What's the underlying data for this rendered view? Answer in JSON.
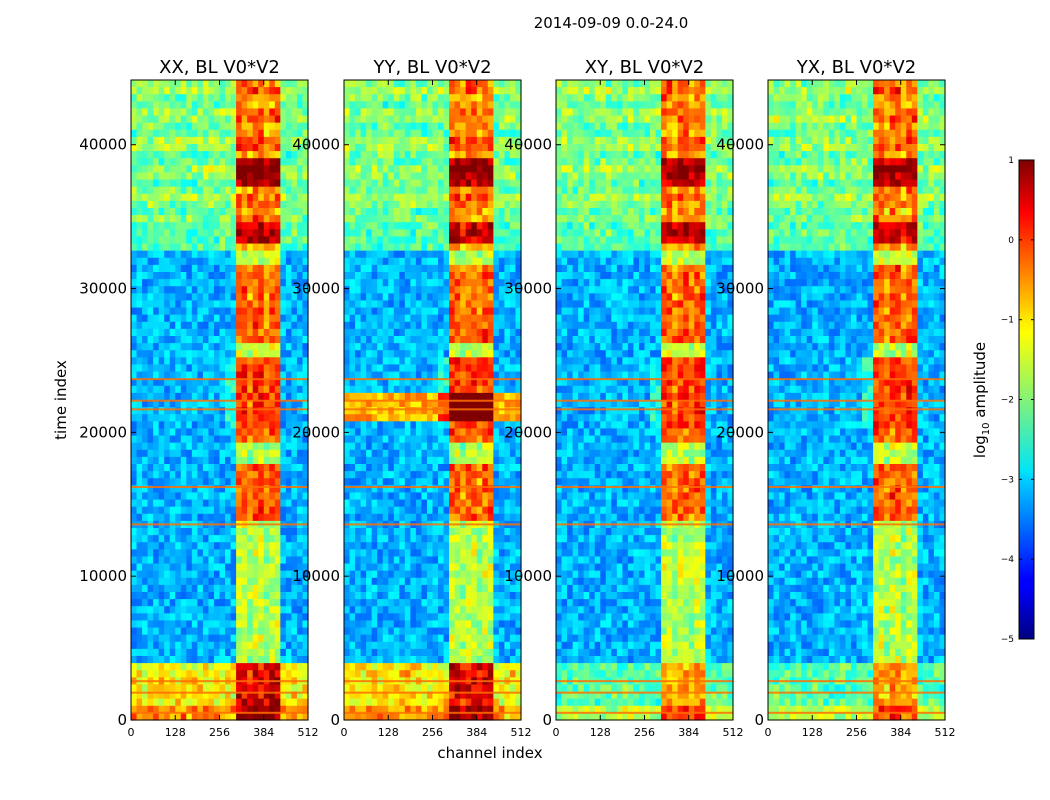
{
  "chart_data": {
    "type": "heatmap",
    "suptitle": "2014-09-09 0.0-24.0",
    "xlabel": "channel index",
    "ylabel": "time index",
    "xlim": [
      0,
      512
    ],
    "ylim": [
      0,
      44500
    ],
    "x_ticks": [
      "0",
      "128",
      "256",
      "384",
      "512"
    ],
    "x_tick_values": [
      0,
      128,
      256,
      384,
      512
    ],
    "y_ticks": [
      "0",
      "10000",
      "20000",
      "30000",
      "40000"
    ],
    "y_tick_values": [
      0,
      10000,
      20000,
      30000,
      40000
    ],
    "colorbar": {
      "label_prefix": "log",
      "label_sub": "10",
      "label_suffix": " amplitude",
      "ticks": [
        "1",
        "0",
        "−1",
        "−2",
        "−3",
        "−4",
        "−5"
      ],
      "tick_values": [
        1,
        0,
        -1,
        -2,
        -3,
        -4,
        -5
      ],
      "range": [
        -5,
        1
      ],
      "colormap": "jet"
    },
    "panels": [
      {
        "title": "XX, BL V0*V2",
        "extra_band": null
      },
      {
        "title": "YY, BL V0*V2",
        "extra_band": [
          21000,
          22500
        ]
      },
      {
        "title": "XY, BL V0*V2",
        "extra_band": null
      },
      {
        "title": "YX, BL V0*V2",
        "extra_band": null
      }
    ],
    "features": {
      "background_log_amp": -3.2,
      "quiet_region_time": [
        4000,
        32500
      ],
      "strong_channel_band": [
        310,
        430
      ],
      "hot_time_band": [
        20500,
        25000
      ],
      "hot_blocks_time": [
        [
          14000,
          18000
        ],
        [
          19500,
          20500
        ],
        [
          26000,
          31500
        ],
        [
          33000,
          34500
        ],
        [
          37000,
          39000
        ]
      ],
      "streak_times": [
        23700,
        22200,
        21600,
        16200,
        13600,
        2700,
        1900,
        500
      ],
      "upper_noisy_time": [
        34500,
        44500
      ]
    }
  }
}
